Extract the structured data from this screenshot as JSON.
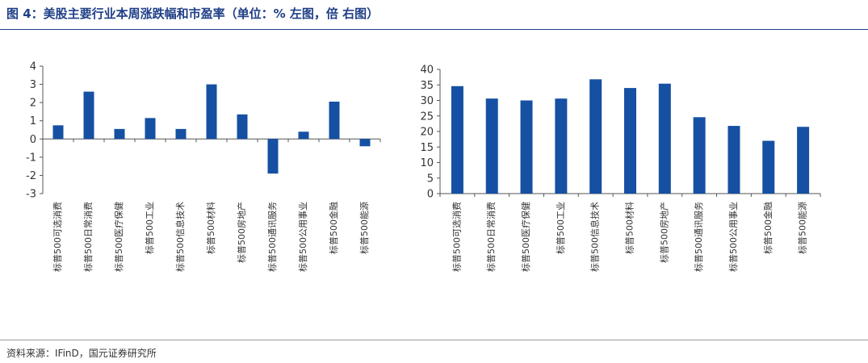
{
  "header": {
    "title": "图 4：美股主要行业本周涨跌幅和市盈率（单位：% 左图，倍 右图）"
  },
  "footer": {
    "source": "资料来源：IFinD，国元证券研究所"
  },
  "colors": {
    "bar": "#1550a3",
    "title": "#1f3f86",
    "axis": "#555555"
  },
  "chart_data": [
    {
      "type": "bar",
      "title": "",
      "xlabel": "",
      "ylabel": "",
      "categories": [
        "标普500可选消费",
        "标普500日常消费",
        "标普500医疗保健",
        "标普500工业",
        "标普500信息技术",
        "标普500材料",
        "标普500房地产",
        "标普500通讯服务",
        "标普500公用事业",
        "标普500金融",
        "标普500能源"
      ],
      "values": [
        0.75,
        2.6,
        0.55,
        1.15,
        0.55,
        3.0,
        1.35,
        -1.9,
        0.4,
        2.05,
        -0.4
      ],
      "ylim": [
        -3,
        4
      ],
      "yticks": [
        "4",
        "3",
        "2",
        "1",
        "0",
        "-1",
        "-2",
        "-3"
      ],
      "grid": false,
      "legend": "none"
    },
    {
      "type": "bar",
      "title": "",
      "xlabel": "",
      "ylabel": "",
      "categories": [
        "标普500可选消费",
        "标普500日常消费",
        "标普500医疗保健",
        "标普500工业",
        "标普500信息技术",
        "标普500材料",
        "标普500房地产",
        "标普500通讯服务",
        "标普500公用事业",
        "标普500金融",
        "标普500能源"
      ],
      "values": [
        34.6,
        30.6,
        30.0,
        30.6,
        36.8,
        34.0,
        35.4,
        24.6,
        21.8,
        17.0,
        21.5
      ],
      "ylim": [
        0,
        40
      ],
      "yticks": [
        "40",
        "35",
        "30",
        "25",
        "20",
        "15",
        "10",
        "5",
        "0"
      ],
      "grid": false,
      "legend": "none"
    }
  ]
}
